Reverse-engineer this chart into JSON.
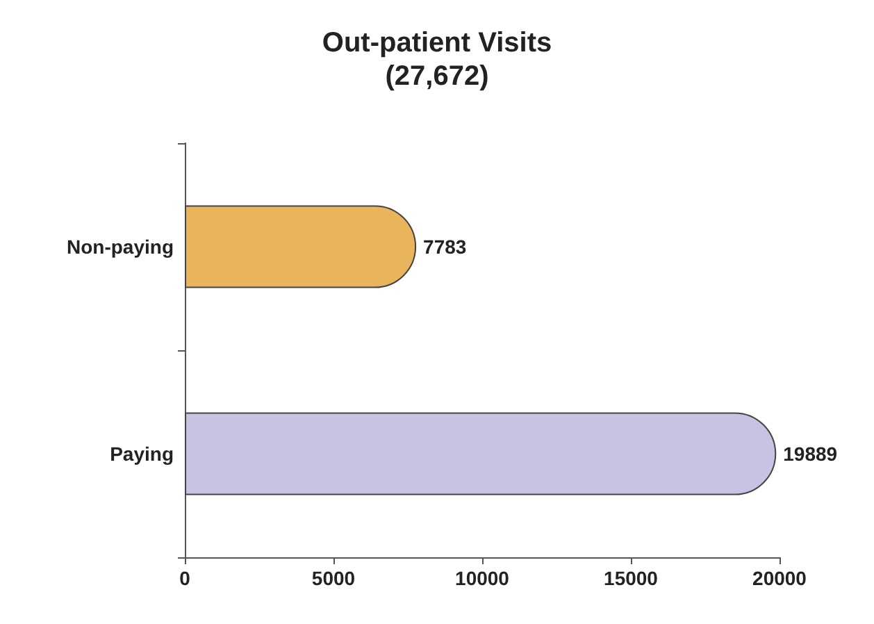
{
  "chart_data": {
    "type": "bar",
    "orientation": "horizontal",
    "title": "Out-patient Visits",
    "subtitle": "(27,672)",
    "categories": [
      "Non-paying",
      "Paying"
    ],
    "values": [
      7783,
      19889
    ],
    "colors": [
      "#e8b45c",
      "#c9c2e2"
    ],
    "data_labels": true,
    "xlim": [
      0,
      20000
    ],
    "xticks": [
      0,
      5000,
      10000,
      15000,
      20000
    ],
    "grid": false
  }
}
